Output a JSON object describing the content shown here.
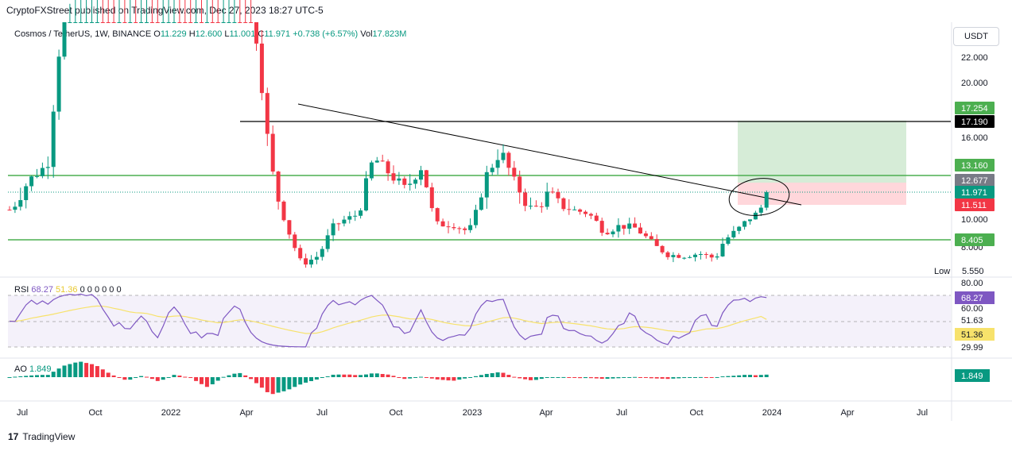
{
  "header": {
    "published": "CryptoFXStreet published on TradingView.com, Dec 27, 2023 18:27 UTC-5"
  },
  "symbol": {
    "name": "Cosmos / TetherUS, 1W, BINANCE",
    "o_label": "O",
    "o": "11.229",
    "h_label": "H",
    "h": "12.600",
    "l_label": "L",
    "l": "11.001",
    "c_label": "C",
    "c": "11.971",
    "change": "+0.738 (+6.57%)",
    "vol_label": "Vol",
    "vol": "17.823M"
  },
  "currency_button": "USDT",
  "price_axis": {
    "ticks": [
      "22.000",
      "20.000",
      "16.000",
      "10.000",
      "8.000"
    ],
    "tags": [
      {
        "label": "17.254",
        "color": "#4caf50",
        "text_color": "#ffffff"
      },
      {
        "label": "17.190",
        "color": "#000000",
        "text_color": "#ffffff"
      },
      {
        "label": "13.160",
        "color": "#4caf50",
        "text_color": "#ffffff"
      },
      {
        "label": "12.677",
        "color": "#787b86",
        "text_color": "#ffffff"
      },
      {
        "label": "11.971",
        "color": "#089981",
        "text_color": "#ffffff"
      },
      {
        "label": "11.511",
        "color": "#f23645",
        "text_color": "#ffffff"
      },
      {
        "label": "8.405",
        "color": "#4caf50",
        "text_color": "#ffffff"
      }
    ],
    "low_label": "Low",
    "low_value": "5.550"
  },
  "rsi": {
    "label": "RSI",
    "value": "68.27",
    "ma_value": "51.36",
    "params": "0 0 0 0 0 0",
    "ticks": [
      "80.00",
      "60.00",
      "51.63",
      "29.99"
    ],
    "value_tag": "68.27",
    "ma_tag": "51.36",
    "colors": {
      "line": "#7e57c2",
      "ma": "#f7e26b",
      "band": "#ede7f6"
    }
  },
  "ao": {
    "label": "AO",
    "value": "1.849",
    "value_tag": "1.849",
    "colors": {
      "up": "#089981",
      "down": "#f23645"
    }
  },
  "time_axis": [
    "Jul",
    "Oct",
    "2022",
    "Apr",
    "Jul",
    "Oct",
    "2023",
    "Apr",
    "Jul",
    "Oct",
    "2024",
    "Apr",
    "Jul"
  ],
  "footer": {
    "brand": "TradingView"
  },
  "colors": {
    "up": "#089981",
    "down": "#f23645",
    "level": "#4caf50",
    "target": "#c8e6c9",
    "stop": "#ffcdd2"
  },
  "chart_data": {
    "type": "candlestick",
    "title": "Cosmos / TetherUS, 1W, BINANCE",
    "levels": [
      17.19,
      13.16,
      8.405
    ],
    "trade_box": {
      "entry": 12.677,
      "target": 17.254,
      "stop": 11.511
    },
    "last_close": 11.971,
    "low": 5.55
  }
}
